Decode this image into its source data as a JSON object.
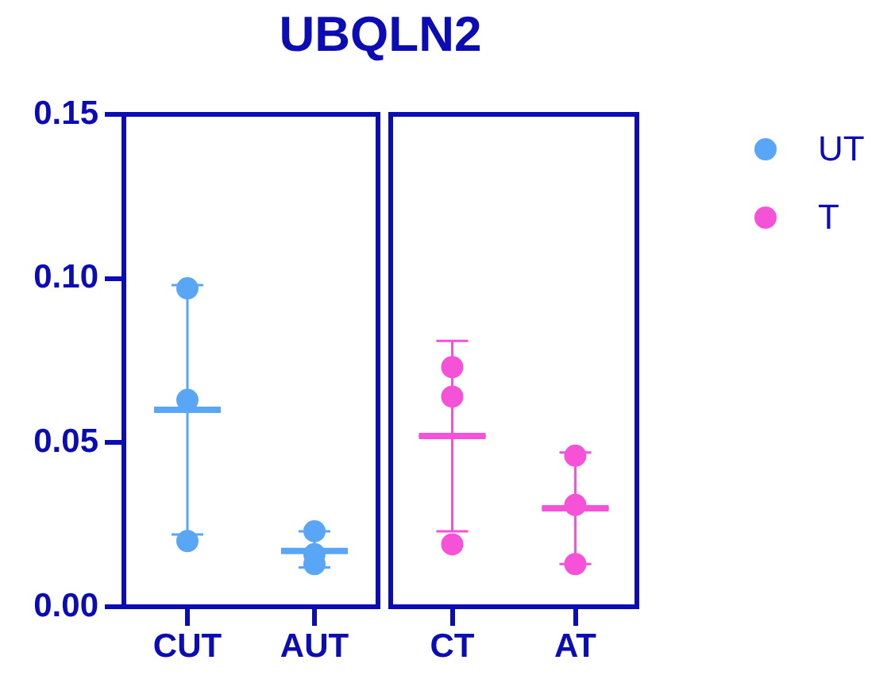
{
  "chart_data": [
    {
      "type": "scatter",
      "title": "UBQLN2",
      "categories": [
        "CUT",
        "AUT"
      ],
      "series": [
        {
          "name": "UT",
          "color": "#5aa6f6",
          "x": [
            "CUT",
            "CUT",
            "CUT",
            "AUT",
            "AUT",
            "AUT"
          ],
          "values": [
            0.097,
            0.063,
            0.02,
            0.023,
            0.016,
            0.013
          ],
          "marker": "circle"
        },
        {
          "type": "box",
          "color": "#5aa6f6",
          "boxes": [
            {
              "low": 0.022,
              "q1": 0.06,
              "median": 0.06,
              "q3": 0.06,
              "high": 0.098
            },
            {
              "low": 0.012,
              "q1": 0.017,
              "median": 0.017,
              "q3": 0.017,
              "high": 0.023
            }
          ]
        }
      ],
      "ylim": [
        0,
        0.15
      ],
      "yticks": [
        {
          "value": 0,
          "label": "0.00"
        },
        0.05,
        {
          "value": 0.1,
          "label": "0.10"
        },
        0.15
      ],
      "legend": "right"
    },
    {
      "type": "scatter",
      "categories": [
        "CT",
        "AT"
      ],
      "series": [
        {
          "name": "T",
          "color": "#f652d8",
          "x": [
            "CT",
            "CT",
            "CT",
            "AT",
            "AT",
            "AT"
          ],
          "values": [
            0.073,
            0.064,
            0.019,
            0.046,
            0.031,
            0.013
          ],
          "marker": "circle"
        },
        {
          "type": "box",
          "color": "#f652d8",
          "boxes": [
            {
              "low": 0.023,
              "q1": 0.052,
              "median": 0.052,
              "q3": 0.052,
              "high": 0.081
            },
            {
              "low": 0.013,
              "q1": 0.03,
              "median": 0.03,
              "q3": 0.03,
              "high": 0.047
            }
          ]
        }
      ],
      "ylim": [
        0,
        0.15
      ],
      "tick_labels": "x",
      "legend": "right"
    }
  ]
}
